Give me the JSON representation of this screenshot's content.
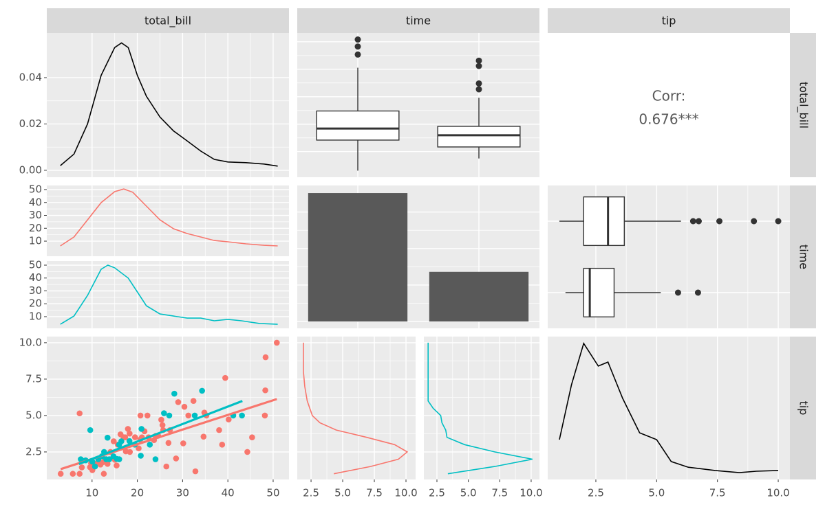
{
  "strips": {
    "columns": [
      "total_bill",
      "time",
      "tip"
    ],
    "rows": [
      "total_bill",
      "time",
      "tip"
    ]
  },
  "chart_data": [
    {
      "type": "line",
      "xlim": [
        0,
        53.5
      ],
      "ylim": [
        -0.003,
        0.0593
      ],
      "xticks": [
        10,
        20,
        30,
        40,
        50
      ],
      "yticks": [
        {
          "value": 0,
          "label": "0.00"
        },
        {
          "value": 0.02,
          "label": "0.02"
        },
        {
          "value": 0.04,
          "label": "0.04"
        }
      ],
      "show_x_labels": false,
      "show_y_labels": true,
      "series": [
        {
          "color": "#000000",
          "x": [
            3,
            6,
            9,
            12,
            15,
            16.5,
            18,
            20,
            22,
            25,
            28,
            31,
            34,
            37,
            40,
            44,
            48,
            51
          ],
          "values": [
            0.002,
            0.007,
            0.02,
            0.041,
            0.053,
            0.055,
            0.053,
            0.041,
            0.032,
            0.023,
            0.017,
            0.0127,
            0.0083,
            0.0047,
            0.0036,
            0.0033,
            0.0027,
            0.0018
          ]
        }
      ]
    },
    {
      "type": "box",
      "orientation": "vertical",
      "ylim": [
        0.68,
        53.2
      ],
      "yticks": [
        10,
        20,
        30,
        40,
        50
      ],
      "show_x_labels": false,
      "show_y_labels": false,
      "boxes": [
        {
          "whisker_low": 3.07,
          "q1": 14.2,
          "median": 18.39,
          "q3": 24.8,
          "whisker_high": 40.55,
          "outliers": [
            45.35,
            48.27,
            50.81
          ]
        },
        {
          "whisker_low": 7.51,
          "q1": 11.7,
          "median": 15.97,
          "q3": 19.2,
          "whisker_high": 29.6,
          "outliers": [
            32.68,
            34.83,
            41.19,
            43.11
          ]
        }
      ]
    },
    {
      "type": "text",
      "lines": [
        "Corr:",
        "0.676***"
      ]
    },
    {
      "type": "line",
      "xlim": [
        0,
        53.5
      ],
      "ylim": [
        -1.7,
        53.2
      ],
      "xticks": [
        10,
        20,
        30,
        40,
        50
      ],
      "yticks": [
        10,
        20,
        30,
        40,
        50
      ],
      "show_x_labels": false,
      "show_y_labels": true,
      "series": [
        {
          "color": "#F8766D",
          "x": [
            3,
            6,
            9,
            12,
            15,
            17,
            19,
            22,
            25,
            28,
            31,
            34,
            37,
            40,
            44,
            48,
            51
          ],
          "values": [
            6.3,
            13.2,
            26.5,
            39.9,
            48.4,
            50.5,
            47.9,
            37.2,
            26.5,
            19.6,
            15.9,
            13.2,
            10.5,
            9.5,
            7.9,
            6.8,
            6.3
          ]
        }
      ]
    },
    {
      "type": "line",
      "xlim": [
        0,
        53.5
      ],
      "ylim": [
        0.93,
        53.2
      ],
      "xticks": [
        10,
        20,
        30,
        40,
        50
      ],
      "yticks": [
        10,
        20,
        30,
        40,
        50
      ],
      "show_x_labels": false,
      "show_y_labels": true,
      "series": [
        {
          "color": "#00BFC4",
          "x": [
            3,
            6,
            9,
            12,
            13.5,
            15,
            18,
            20,
            22,
            25,
            28,
            31,
            34,
            37,
            40,
            43,
            47,
            51
          ],
          "values": [
            4.1,
            10.5,
            26.5,
            46.8,
            50,
            47.9,
            39.9,
            29.2,
            18.5,
            12.1,
            10.5,
            8.9,
            8.9,
            6.8,
            7.9,
            6.8,
            4.7,
            4.1
          ]
        }
      ]
    },
    {
      "type": "bar",
      "ylim": [
        -9.4,
        186.4
      ],
      "yticks": [
        0,
        50,
        100,
        150
      ],
      "color": "#595959",
      "show_x_labels": false,
      "show_y_labels": false,
      "values": [
        176,
        68
      ]
    },
    {
      "type": "box",
      "orientation": "horizontal",
      "xlim": [
        0.52,
        10.48
      ],
      "xticks": [
        2.5,
        5,
        7.5,
        10
      ],
      "show_x_labels": false,
      "show_y_labels": false,
      "boxes": [
        {
          "whisker_low": 1.0,
          "q1": 2.0,
          "median": 3.0,
          "q3": 3.67,
          "whisker_high": 6.0,
          "outliers": [
            6.5,
            6.73,
            7.58,
            9.0,
            10.0
          ]
        },
        {
          "whisker_low": 1.25,
          "q1": 2.0,
          "median": 2.25,
          "q3": 3.25,
          "whisker_high": 5.17,
          "outliers": [
            5.88,
            6.7
          ]
        }
      ]
    },
    {
      "type": "scatter",
      "xlim": [
        0,
        53.5
      ],
      "ylim": [
        0.61,
        10.42
      ],
      "xticks": [
        10,
        20,
        30,
        40,
        50
      ],
      "yticks": [
        2.5,
        {
          "value": 5,
          "label": "5.0"
        },
        7.5,
        {
          "value": 10,
          "label": "10.0"
        }
      ],
      "show_x_labels": true,
      "show_y_labels": true,
      "series": [
        {
          "color": "#F8766D",
          "x": [
            3.07,
            5.75,
            7.25,
            7.74,
            9.55,
            10.07,
            10.33,
            10.34,
            10.27,
            11.24,
            12.6,
            13,
            13.42,
            14.07,
            14.78,
            15.04,
            15.42,
            16.29,
            16.97,
            17.46,
            17.92,
            18.29,
            18.35,
            19.49,
            20.29,
            20.65,
            21.01,
            21.58,
            22.23,
            22.49,
            23.68,
            24.06,
            24.59,
            25.29,
            25.71,
            26.41,
            26.88,
            27.2,
            28.55,
            29.03,
            30.14,
            30.4,
            31.27,
            32.4,
            34.81,
            35.26,
            38.07,
            39.42,
            40.17,
            44.3,
            45.35,
            48.17,
            48.27,
            48.33,
            50.81,
            32.83,
            34.63,
            38.73,
            25.56,
            20.69,
            7.25,
            9.78,
            12.43,
            11.87,
            17.31,
            15.69
          ],
          "values": [
            1,
            1,
            1,
            1.44,
            1.45,
            1.25,
            1.67,
            1.66,
            1.71,
            1.76,
            1,
            2,
            1.68,
            2.5,
            3.23,
            1.96,
            1.57,
            3.71,
            3.5,
            2.54,
            4.08,
            3.76,
            2.5,
            3.51,
            2.75,
            3.35,
            3.5,
            3.92,
            5,
            3.5,
            3.31,
            3.6,
            3.61,
            4.71,
            4,
            1.5,
            3.12,
            4,
            2.05,
            5.92,
            3.09,
            5.6,
            5,
            6,
            5.2,
            5,
            4,
            7.58,
            4.73,
            2.5,
            3.5,
            5,
            6.73,
            9,
            10,
            1.17,
            3.55,
            3,
            4.34,
            5,
            5.15,
            1.73,
            1.8,
            1.63,
            3.5,
            3
          ]
        },
        {
          "color": "#00BFC4",
          "x": [
            7.51,
            8.58,
            10.07,
            10.65,
            12.66,
            13.13,
            13.42,
            13.81,
            14.73,
            15.48,
            16.0,
            16.47,
            18.26,
            19.44,
            20.76,
            20.92,
            24.01,
            25.89,
            27.05,
            28.17,
            34.3,
            41.19,
            43.11,
            15.98,
            12.16,
            11.38,
            9.6,
            22.76,
            32.68
          ],
          "values": [
            2,
            1.92,
            1.83,
            1.5,
            2.5,
            2,
            3.48,
            2,
            2.2,
            2.02,
            2,
            3.23,
            3.25,
            3,
            2.24,
            4.08,
            2,
            5.16,
            5,
            6.5,
            6.7,
            5,
            5,
            3,
            2.2,
            2,
            4,
            3,
            5
          ]
        }
      ],
      "fits": [
        {
          "color": "#F8766D",
          "x": [
            3.07,
            50.81
          ],
          "values": [
            1.32,
            6.13
          ]
        },
        {
          "color": "#00BFC4",
          "x": [
            7.1,
            43.2
          ],
          "values": [
            1.67,
            6.0
          ]
        }
      ]
    },
    {
      "type": "line",
      "orientation": "horizontal",
      "xlim": [
        1.41,
        10.76
      ],
      "ylim": [
        0.61,
        10.42
      ],
      "xticks": [
        2.5,
        {
          "value": 5,
          "label": "5.0"
        },
        7.5,
        {
          "value": 10,
          "label": "10.0"
        }
      ],
      "yticks": [
        2.5,
        5,
        7.5,
        10
      ],
      "show_x_labels": true,
      "show_y_labels": false,
      "series": [
        {
          "color": "#F8766D",
          "x": [
            1,
            1.5,
            2,
            2.5,
            3,
            3.5,
            4,
            4.5,
            5,
            5.5,
            6,
            7,
            8,
            9,
            10
          ],
          "values": [
            4.3,
            7.2,
            9.4,
            10.1,
            9.1,
            6.9,
            4.5,
            3.2,
            2.6,
            2.4,
            2.2,
            2.0,
            1.9,
            1.9,
            1.9
          ]
        }
      ]
    },
    {
      "type": "line",
      "orientation": "horizontal",
      "xlim": [
        1.46,
        10.66
      ],
      "ylim": [
        0.61,
        10.42
      ],
      "xticks": [
        2.5,
        {
          "value": 5,
          "label": "5.0"
        },
        7.5,
        {
          "value": 10,
          "label": "10.0"
        }
      ],
      "yticks": [
        2.5,
        5,
        7.5,
        10
      ],
      "show_x_labels": true,
      "show_y_labels": false,
      "series": [
        {
          "color": "#00BFC4",
          "x": [
            1,
            1.5,
            2,
            2.5,
            3,
            3.5,
            4,
            4.5,
            5,
            5.5,
            6,
            7,
            8,
            9,
            10
          ],
          "values": [
            3.37,
            7.1,
            10.1,
            7.1,
            4.7,
            3.3,
            3.2,
            2.9,
            2.8,
            2.2,
            1.8,
            1.8,
            1.8,
            1.8,
            1.8
          ]
        }
      ]
    },
    {
      "type": "line",
      "xlim": [
        0.52,
        10.48
      ],
      "ylim": [
        -0.019,
        0.379
      ],
      "xticks": [
        2.5,
        {
          "value": 5,
          "label": "5.0"
        },
        7.5,
        {
          "value": 10,
          "label": "10.0"
        }
      ],
      "show_x_labels": true,
      "show_y_labels": false,
      "series": [
        {
          "color": "#000000",
          "x": [
            1.0,
            1.5,
            2.0,
            2.6,
            3.0,
            3.6,
            4.3,
            5.0,
            5.6,
            6.3,
            7.4,
            8.4,
            9.1,
            10.0
          ],
          "values": [
            0.092,
            0.245,
            0.36,
            0.297,
            0.308,
            0.207,
            0.111,
            0.092,
            0.031,
            0.015,
            0.006,
            0,
            0.004,
            0.006
          ]
        }
      ]
    }
  ]
}
